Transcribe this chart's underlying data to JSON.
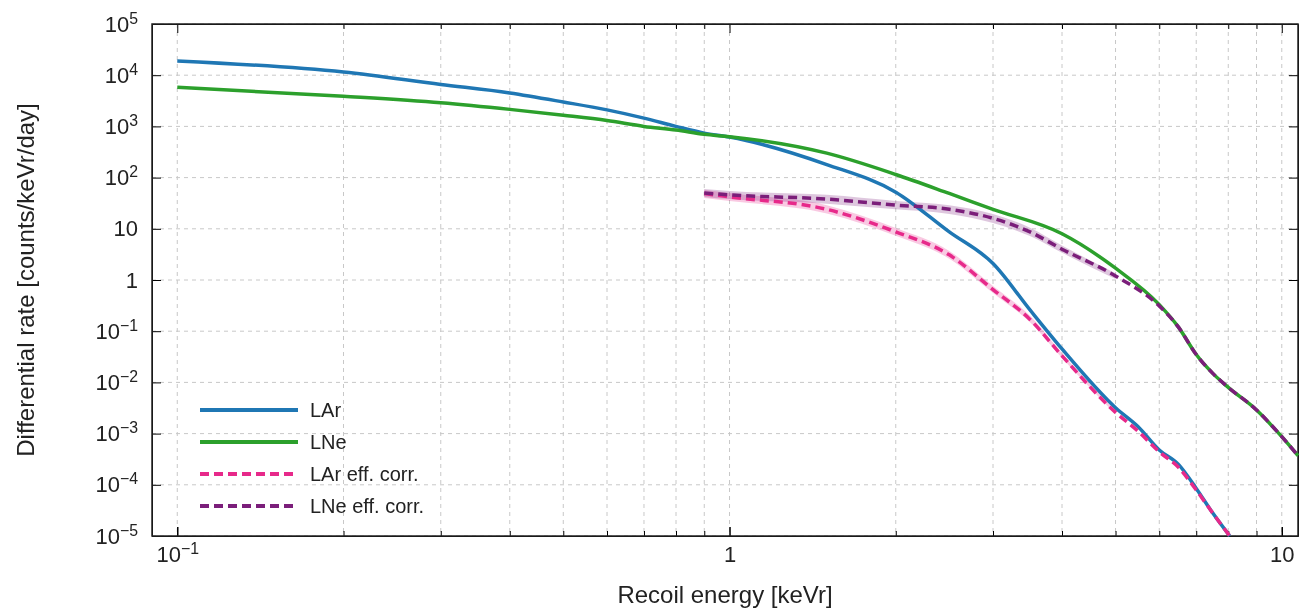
{
  "chart_data": {
    "type": "line",
    "xlabel": "Recoil energy [keVr]",
    "ylabel": "Differential rate [counts/keVr/day]",
    "log": "xy",
    "grid": true,
    "legend": "bottom left",
    "line_style": "solid",
    "marker": "none",
    "xlim": [
      0.09,
      10.7
    ],
    "ylim": [
      1e-05,
      100000
    ],
    "xticks": [
      {
        "value": 0.1,
        "label": "10$^{−1}$"
      },
      {
        "value": 0.2,
        "label": null
      },
      {
        "value": 0.3,
        "label": null
      },
      {
        "value": 0.4,
        "label": null
      },
      {
        "value": 0.5,
        "label": null
      },
      {
        "value": 0.6,
        "label": null
      },
      {
        "value": 0.7,
        "label": null
      },
      {
        "value": 0.8,
        "label": null
      },
      {
        "value": 0.9,
        "label": null
      },
      1,
      {
        "value": 2,
        "label": null
      },
      {
        "value": 3,
        "label": null
      },
      {
        "value": 4,
        "label": null
      },
      {
        "value": 5,
        "label": null
      },
      {
        "value": 6,
        "label": null
      },
      {
        "value": 7,
        "label": null
      },
      {
        "value": 8,
        "label": null
      },
      {
        "value": 9,
        "label": null
      },
      10
    ],
    "yticks": [
      {
        "value": 1e-05,
        "label": "10$^{−5}$"
      },
      {
        "value": 0.0001,
        "label": "10$^{−4}$"
      },
      {
        "value": 0.001,
        "label": "10$^{−3}$"
      },
      {
        "value": 0.01,
        "label": "10$^{−2}$"
      },
      {
        "value": 0.1,
        "label": "10$^{−1}$"
      },
      1,
      10,
      {
        "value": 100,
        "label": "10$^{2}$"
      },
      {
        "value": 1000,
        "label": "10$^{3}$"
      },
      {
        "value": 10000,
        "label": "10$^{4}$"
      },
      {
        "value": 100000,
        "label": "10$^{5}$"
      }
    ],
    "series": [
      {
        "name": "LAr",
        "color": "#1f77b4",
        "x": [
          0.1,
          0.2,
          0.3,
          0.4,
          0.5,
          0.6,
          0.7,
          0.8,
          0.9,
          1,
          1.5,
          2,
          2.5,
          3,
          3.5,
          4,
          5,
          5.5,
          6,
          6.5,
          7,
          7.5,
          8.05
        ],
        "values": [
          19000,
          11500,
          6600,
          4500,
          3000,
          2100,
          1450,
          1000,
          740,
          620,
          180,
          52,
          8.7,
          2.1,
          0.26,
          0.045,
          0.0032,
          0.00135,
          0.00048,
          0.00025,
          8.5e-05,
          2.8e-05,
          1e-05
        ]
      },
      {
        "name": "LNe",
        "color": "#2ca02c",
        "x": [
          0.1,
          0.2,
          0.3,
          0.4,
          0.5,
          0.6,
          0.7,
          0.8,
          0.9,
          1,
          1.5,
          2,
          2.5,
          3,
          4,
          5,
          6,
          6.5,
          7,
          7.5,
          8,
          9,
          10,
          10.7
        ],
        "values": [
          5800,
          3900,
          2900,
          2150,
          1650,
          1300,
          1000,
          850,
          700,
          630,
          300,
          115,
          49,
          24,
          8,
          1.7,
          0.33,
          0.12,
          0.035,
          0.015,
          0.008,
          0.0029,
          0.00087,
          0.00037
        ]
      },
      {
        "name": "LAr eff. corr.",
        "color": "#e7298a",
        "line_style": "dashed",
        "x": [
          0.9,
          1,
          1.5,
          2,
          2.5,
          3,
          3.5,
          4,
          5,
          5.5,
          6,
          6.5,
          7,
          7.5,
          8.05
        ],
        "values": [
          49,
          42,
          24,
          8.7,
          3.1,
          0.65,
          0.17,
          0.033,
          0.0026,
          0.0011,
          0.00044,
          0.00022,
          7.9e-05,
          2.8e-05,
          1e-05
        ],
        "lower": [
          40,
          35,
          20,
          7.3,
          2.6,
          0.56,
          0.15,
          0.03,
          0.0024,
          null,
          null,
          null,
          null,
          null,
          null
        ],
        "upper": [
          58,
          50,
          29,
          10.4,
          3.7,
          0.76,
          0.2,
          0.037,
          0.0028,
          null,
          null,
          null,
          null,
          null,
          null
        ]
      },
      {
        "name": "LNe eff. corr.",
        "color": "#7b1e7a",
        "line_style": "dashed",
        "x": [
          0.9,
          1,
          1.5,
          2,
          2.5,
          3,
          3.5,
          4,
          5,
          6,
          6.5,
          7,
          7.5,
          8,
          9,
          10,
          10.7
        ],
        "values": [
          50,
          46,
          38,
          29,
          24,
          16,
          8.7,
          4,
          1.2,
          0.31,
          0.12,
          0.035,
          0.015,
          0.008,
          0.0029,
          0.00087,
          0.00037
        ],
        "lower": [
          42,
          38,
          31,
          24,
          19.5,
          13,
          7.2,
          3.4,
          1.05,
          null,
          null,
          null,
          null,
          null,
          null,
          null,
          null
        ],
        "upper": [
          60,
          55,
          46,
          35,
          29,
          19.5,
          10.5,
          4.7,
          1.35,
          null,
          null,
          null,
          null,
          null,
          null,
          null,
          null
        ]
      }
    ]
  }
}
